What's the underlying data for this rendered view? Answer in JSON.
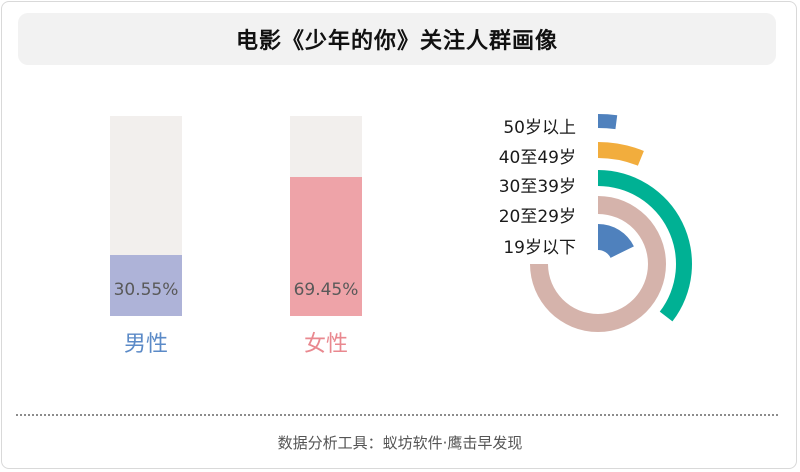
{
  "title": "电影《少年的你》关注人群画像",
  "footer": "数据分析工具：蚁坊软件·鹰击早发现",
  "colors": {
    "male": "#aeb3d8",
    "female": "#eea3a8",
    "male_label": "#5b8ac7",
    "female_label": "#e9888f",
    "bar_bg": "#f2efed",
    "age_50_plus": "#4f81bd",
    "age_40_49": "#f2ad3d",
    "age_30_39": "#00b194",
    "age_20_29": "#d5b3ab",
    "age_under_19": "#4f81bd"
  },
  "chart_data": [
    {
      "type": "bar",
      "categories": [
        "男性",
        "女性"
      ],
      "values": [
        30.55,
        69.45
      ],
      "value_labels": [
        "30.55%",
        "69.45%"
      ],
      "unit": "%",
      "ylim": [
        0,
        100
      ],
      "grid": false
    },
    {
      "type": "radial-bar",
      "categories": [
        "50岁以上",
        "40至49岁",
        "30至39岁",
        "20至29岁",
        "19岁以下"
      ],
      "values": [
        1.5,
        4.5,
        26,
        55,
        13
      ],
      "unit": "%",
      "legend": "left"
    }
  ]
}
